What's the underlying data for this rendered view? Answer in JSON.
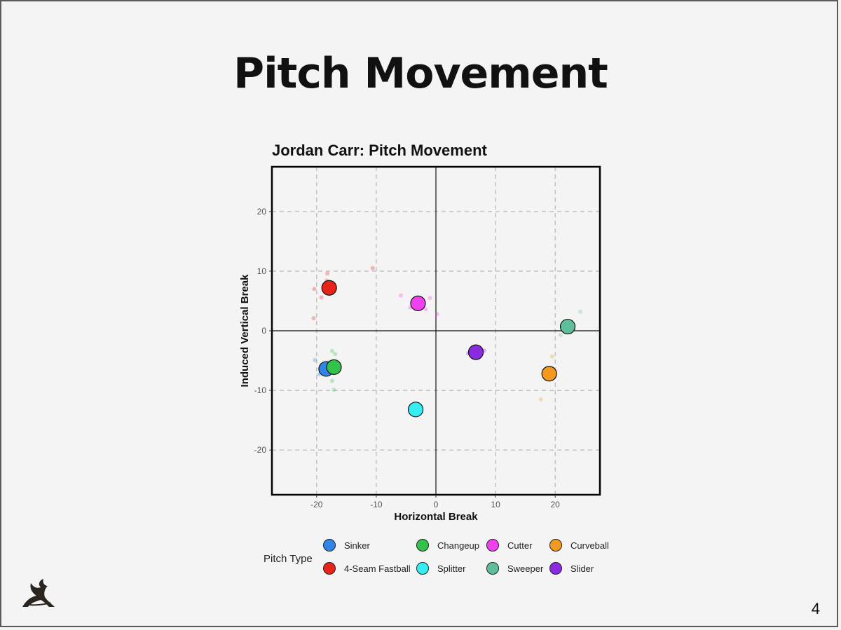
{
  "slide": {
    "title": "Pitch Movement",
    "page_number": "4",
    "logo_icon": "stylized-figure-logo-icon"
  },
  "chart_data": {
    "type": "scatter",
    "title": "Jordan Carr: Pitch Movement",
    "xlabel": "Horizontal Break",
    "ylabel": "Induced Vertical Break",
    "xlim": [
      -27.5,
      27.5
    ],
    "ylim": [
      -27.5,
      27.5
    ],
    "xticks": [
      -20,
      -10,
      0,
      10,
      20
    ],
    "yticks": [
      -20,
      -10,
      0,
      10,
      20
    ],
    "grid": true,
    "legend_title": "Pitch Type",
    "legend_position": "bottom",
    "series": [
      {
        "name": "Sinker",
        "color": "#2f86e8",
        "mean": [
          -18.4,
          -6.4
        ],
        "points": [
          [
            -20.3,
            -4.9
          ],
          [
            -18.9,
            -6.6
          ],
          [
            -19.6,
            -7.3
          ],
          [
            -18.0,
            -5.3
          ]
        ]
      },
      {
        "name": "Changeup",
        "color": "#33c24a",
        "mean": [
          -17.1,
          -6.1
        ],
        "points": [
          [
            -17.4,
            -3.4
          ],
          [
            -16.9,
            -3.9
          ],
          [
            -17.4,
            -8.4
          ],
          [
            -17.1,
            -9.9
          ]
        ]
      },
      {
        "name": "Cutter",
        "color": "#f040f0",
        "mean": [
          -3.0,
          4.6
        ],
        "points": [
          [
            -5.9,
            5.9
          ],
          [
            -1.0,
            5.5
          ],
          [
            -1.7,
            3.6
          ],
          [
            0.2,
            2.8
          ],
          [
            -4.3,
            3.9
          ]
        ]
      },
      {
        "name": "Curveball",
        "color": "#f29a1e",
        "mean": [
          19.0,
          -7.2
        ],
        "points": [
          [
            19.5,
            -4.3
          ],
          [
            17.6,
            -11.5
          ]
        ]
      },
      {
        "name": "4-Seam Fastball",
        "color": "#e8231a",
        "mean": [
          -17.9,
          7.2
        ],
        "points": [
          [
            -18.2,
            9.6
          ],
          [
            -20.4,
            7.0
          ],
          [
            -19.2,
            5.6
          ],
          [
            -20.5,
            2.1
          ],
          [
            -10.6,
            10.5
          ],
          [
            -18.3,
            8.4
          ]
        ]
      },
      {
        "name": "Splitter",
        "color": "#35eef2",
        "mean": [
          -3.4,
          -13.2
        ],
        "points": [
          [
            -3.1,
            -12.2
          ]
        ]
      },
      {
        "name": "Sweeper",
        "color": "#5fbf9b",
        "mean": [
          22.1,
          0.7
        ],
        "points": [
          [
            24.2,
            3.2
          ],
          [
            20.9,
            -0.7
          ]
        ]
      },
      {
        "name": "Slider",
        "color": "#8a2be2",
        "mean": [
          6.7,
          -3.6
        ],
        "points": [
          [
            5.4,
            -3.8
          ],
          [
            8.1,
            -3.3
          ]
        ]
      }
    ]
  }
}
